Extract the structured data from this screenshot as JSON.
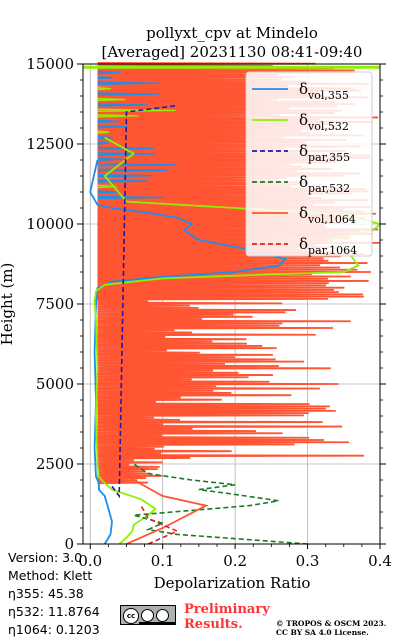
{
  "chart_data": {
    "type": "line",
    "title": [
      "pollyxt_cpv at Mindelo",
      "[Averaged] 20231130 08:41-09:40"
    ],
    "xlabel": "Depolarization Ratio",
    "ylabel": "Height (m)",
    "xlim": [
      -0.01,
      0.4
    ],
    "ylim": [
      0,
      15000
    ],
    "xticks": [
      0.0,
      0.1,
      0.2,
      0.3,
      0.4
    ],
    "xtick_labels": [
      "0.0",
      "0.1",
      "0.2",
      "0.3",
      "0.4"
    ],
    "yticks": [
      0,
      2500,
      5000,
      7500,
      10000,
      12500,
      15000
    ],
    "ytick_labels": [
      "0",
      "2500",
      "5000",
      "7500",
      "10000",
      "12500",
      "15000"
    ],
    "grid": true,
    "legend_position": "top-right",
    "legend": [
      {
        "tex": "δ",
        "sub": "vol,355",
        "color": "#1f8ee8",
        "style": "solid"
      },
      {
        "tex": "δ",
        "sub": "vol,532",
        "color": "#8ef000",
        "style": "solid"
      },
      {
        "tex": "δ",
        "sub": "par,355",
        "color": "#1a1ab0",
        "style": "dashed"
      },
      {
        "tex": "δ",
        "sub": "par,532",
        "color": "#1a7a2a",
        "style": "dashed"
      },
      {
        "tex": "δ",
        "sub": "vol,1064",
        "color": "#ff5533",
        "style": "solid"
      },
      {
        "tex": "δ",
        "sub": "par,1064",
        "color": "#dd2222",
        "style": "dashed"
      }
    ],
    "series": [
      {
        "name": "δvol,355",
        "color": "#1f8ee8",
        "style": "solid",
        "points": [
          [
            0.02,
            0
          ],
          [
            0.028,
            300
          ],
          [
            0.03,
            700
          ],
          [
            0.025,
            1100
          ],
          [
            0.02,
            1500
          ],
          [
            0.012,
            1700
          ],
          [
            0.012,
            1900
          ],
          [
            0.008,
            2100
          ],
          [
            0.006,
            3000
          ],
          [
            0.008,
            4500
          ],
          [
            0.006,
            6000
          ],
          [
            0.008,
            7500
          ],
          [
            0.01,
            8000
          ],
          [
            0.03,
            8200
          ],
          [
            0.1,
            8350
          ],
          [
            0.2,
            8500
          ],
          [
            0.26,
            8700
          ],
          [
            0.27,
            8900
          ],
          [
            0.22,
            9200
          ],
          [
            0.15,
            9500
          ],
          [
            0.13,
            9800
          ],
          [
            0.14,
            10000
          ],
          [
            0.12,
            10200
          ],
          [
            0.08,
            10350
          ],
          [
            0.03,
            10500
          ],
          [
            0.01,
            10600
          ],
          [
            0.0,
            11000
          ],
          [
            0.01,
            12000
          ]
        ]
      },
      {
        "name": "δvol,532",
        "color": "#8ef000",
        "style": "solid",
        "points": [
          [
            0.04,
            0
          ],
          [
            0.05,
            200
          ],
          [
            0.058,
            400
          ],
          [
            0.06,
            600
          ],
          [
            0.08,
            900
          ],
          [
            0.09,
            1100
          ],
          [
            0.07,
            1400
          ],
          [
            0.03,
            1700
          ],
          [
            0.02,
            1900
          ],
          [
            0.012,
            2100
          ],
          [
            0.01,
            2500
          ],
          [
            0.008,
            4000
          ],
          [
            0.01,
            5500
          ],
          [
            0.008,
            7000
          ],
          [
            0.006,
            7600
          ],
          [
            0.008,
            7900
          ],
          [
            0.02,
            8100
          ],
          [
            0.1,
            8300
          ],
          [
            0.22,
            8400
          ],
          [
            0.35,
            8500
          ],
          [
            0.37,
            8700
          ],
          [
            0.36,
            9000
          ],
          [
            0.33,
            9500
          ],
          [
            0.39,
            9800
          ],
          [
            0.4,
            10000
          ],
          [
            0.35,
            10300
          ],
          [
            0.2,
            10500
          ],
          [
            0.05,
            10700
          ],
          [
            0.02,
            11500
          ],
          [
            0.06,
            12200
          ],
          [
            0.02,
            12700
          ]
        ]
      },
      {
        "name": "δpar,355",
        "color": "#1a1ab0",
        "style": "dashed",
        "points": [
          [
            0.03,
            1800
          ],
          [
            0.04,
            1500
          ],
          [
            0.05,
            13500
          ],
          [
            0.12,
            13700
          ]
        ]
      },
      {
        "name": "δpar,532",
        "color": "#1a7a2a",
        "style": "dashed",
        "points": [
          [
            0.3,
            0
          ],
          [
            0.12,
            300
          ],
          [
            0.08,
            450
          ],
          [
            0.1,
            650
          ],
          [
            0.06,
            900
          ],
          [
            0.22,
            1200
          ],
          [
            0.26,
            1350
          ],
          [
            0.2,
            1550
          ],
          [
            0.15,
            1700
          ],
          [
            0.2,
            1850
          ],
          [
            0.14,
            2000
          ],
          [
            0.08,
            2200
          ],
          [
            0.06,
            2500
          ]
        ]
      },
      {
        "name": "δvol,1064",
        "color": "#ff5533",
        "style": "solid",
        "points": [
          [
            0.05,
            0
          ],
          [
            0.1,
            500
          ],
          [
            0.16,
            1200
          ],
          [
            0.1,
            1500
          ],
          [
            0.06,
            2000
          ],
          [
            0.03,
            2500
          ]
        ]
      },
      {
        "name": "δpar,1064",
        "color": "#dd2222",
        "style": "dashed",
        "points": [
          [
            0.08,
            0
          ],
          [
            0.12,
            400
          ],
          [
            0.08,
            800
          ],
          [
            0.07,
            1200
          ]
        ]
      }
    ]
  },
  "meta": {
    "version": "Version: 3.0",
    "method": "Method: Klett",
    "eta355": "η355:  45.38",
    "eta532": "η532: 11.8764",
    "eta1064": "η1064: 0.1203"
  },
  "footer": {
    "license_icon": "cc-by-sa-icon",
    "prelim_line1": "Preliminary",
    "prelim_line2": "Results.",
    "copyright_line1": "© TROPOS & OSCM 2023.",
    "copyright_line2": "CC BY SA 4.0 License."
  }
}
